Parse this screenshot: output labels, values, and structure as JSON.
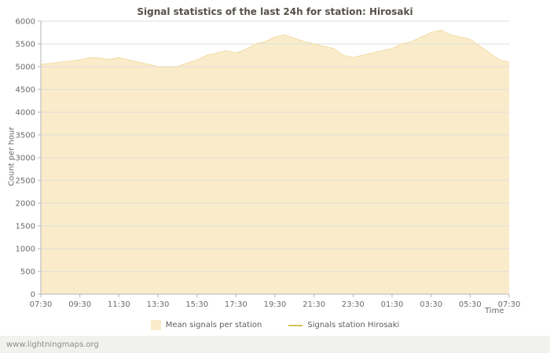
{
  "watermark": "www.lightningmaps.org",
  "chart_data": {
    "type": "area",
    "title": "Signal statistics of the last 24h for station: Hirosaki",
    "xlabel": "Time",
    "ylabel": "Count per hour",
    "ylim": [
      0,
      6000
    ],
    "ytick_step": 500,
    "x_hours_span": 24,
    "x_tick_labels": [
      "07:30",
      "09:30",
      "11:30",
      "13:30",
      "15:30",
      "17:30",
      "19:30",
      "21:30",
      "23:30",
      "01:30",
      "03:30",
      "05:30",
      "07:30"
    ],
    "grid": "horizontal",
    "legend_position": "bottom-center",
    "colors": {
      "area_fill": "#faecca",
      "area_edge": "#f3dfae",
      "station_line": "#d2c35c",
      "grid": "#dedede",
      "axis": "#b5b5b5",
      "text": "#6b6b6b",
      "title": "#56514b"
    },
    "series": [
      {
        "name": "Mean signals per station",
        "type": "area",
        "color": "#faecca",
        "x_step_hours": 0.5,
        "values": [
          5050,
          5070,
          5100,
          5120,
          5150,
          5200,
          5190,
          5160,
          5200,
          5150,
          5100,
          5050,
          5000,
          4980,
          5000,
          5080,
          5150,
          5250,
          5300,
          5350,
          5300,
          5380,
          5500,
          5550,
          5650,
          5700,
          5620,
          5550,
          5500,
          5450,
          5400,
          5250,
          5200,
          5250,
          5300,
          5350,
          5400,
          5500,
          5550,
          5650,
          5750,
          5800,
          5700,
          5650,
          5600,
          5450,
          5300,
          5150,
          5100
        ]
      },
      {
        "name": "Signals station Hirosaki",
        "type": "line",
        "color": "#d2c35c",
        "values": []
      }
    ]
  }
}
